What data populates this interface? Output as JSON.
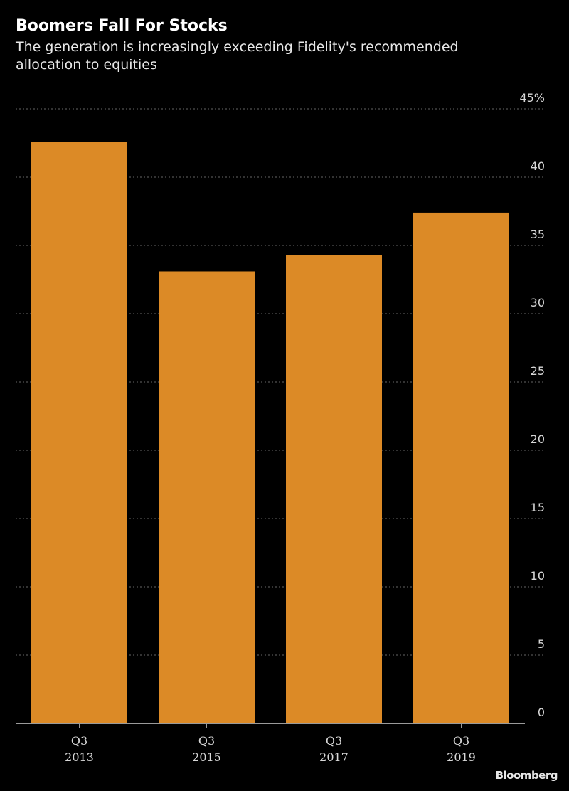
{
  "chart_data": {
    "type": "bar",
    "title": "Boomers Fall For Stocks",
    "subtitle": "The generation is increasingly exceeding Fidelity's recommended allocation to equities",
    "categories": [
      {
        "line1": "Q3",
        "line2": "2013"
      },
      {
        "line1": "Q3",
        "line2": "2015"
      },
      {
        "line1": "Q3",
        "line2": "2017"
      },
      {
        "line1": "Q3",
        "line2": "2019"
      }
    ],
    "values": [
      42.6,
      33.1,
      34.3,
      37.4
    ],
    "ylim": [
      0,
      45
    ],
    "yticks": [
      0,
      5,
      10,
      15,
      20,
      25,
      30,
      35,
      40,
      45
    ],
    "ytick_labels": [
      "0",
      "5",
      "10",
      "15",
      "20",
      "25",
      "30",
      "35",
      "40",
      "45%"
    ],
    "y_axis_side": "right",
    "grid": true,
    "xlabel": "",
    "ylabel": "",
    "colors": {
      "background": "#000000",
      "bar": "#dc8a26",
      "grid": "#666666",
      "axis": "#9a9a9a",
      "text": "#ffffff",
      "tick_text": "#d8d8d8"
    }
  },
  "source": "Bloomberg"
}
